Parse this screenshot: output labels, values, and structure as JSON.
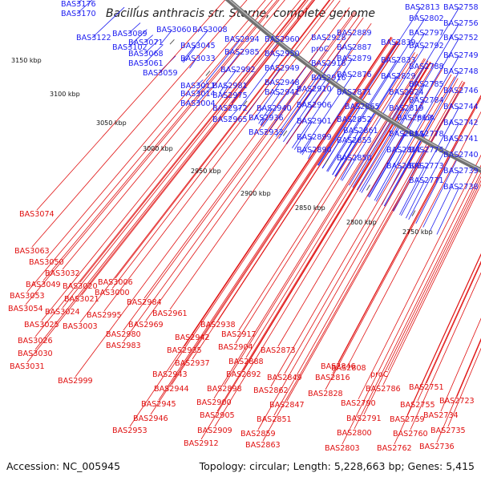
{
  "title": "Bacillus anthracis str. Sterne, complete genome",
  "footer": {
    "accession": "Accession: NC_005945",
    "summary": "Topology: circular; Length: 5,228,663 bp; Genes: 5,415"
  },
  "colors": {
    "forward_label": "#1d1df0",
    "reverse_label": "#e01010",
    "forward_cds": "#1a1ae6",
    "reverse_cds": "#ee1010",
    "backbone": "#707070"
  },
  "ticks": [
    "3150 kbp",
    "3100 kbp",
    "3050 kbp",
    "3000 kbp",
    "2950 kbp",
    "2900 kbp",
    "2850 kbp",
    "2800 kbp",
    "2750 kbp"
  ],
  "labels_top": [
    "BAS3176",
    "BAS3170",
    "BAS3122",
    "BAS3089",
    "BAS3060",
    "BAS3008",
    "BAS3102",
    "BAS3071",
    "BAS3068",
    "BAS3045",
    "BAS2994",
    "BAS2960",
    "BAS2928",
    "BAS2889",
    "BAS2813",
    "BAS2758",
    "BAS2802",
    "BAS2887",
    "BAS2839",
    "BAS2797",
    "BAS2756",
    "BAS2985",
    "BAS2950",
    "proC",
    "BAS2879",
    "BAS2792",
    "BAS2752",
    "BAS3061",
    "BAS3033",
    "BAS2949",
    "BAS2918",
    "BAS2833",
    "BAS2749",
    "BAS3059",
    "BAS2788",
    "BAS2982",
    "BAS2876",
    "BAS2829",
    "BAS2748",
    "BAS3011",
    "BAS2948",
    "BAS2916",
    "BAS2785",
    "BAS3014",
    "BAS2981",
    "BAS2941",
    "BAS2910",
    "BAS2871",
    "BAS2824",
    "BAS2746",
    "BAS3004",
    "BAS2975",
    "BAS2784",
    "BAS2906",
    "BAS2819",
    "BAS2744",
    "BAS2940",
    "BAS2865",
    "BAS2972",
    "BAS2936",
    "BAS2812",
    "proA",
    "BAS2742",
    "BAS2965",
    "BAS2901",
    "BAS2852",
    "BAS2861",
    "BAS2814",
    "BAS2778",
    "BAS2741",
    "BAS2933",
    "BAS2899",
    "BAS2853",
    "BAS2811",
    "BAS2775",
    "BAS2740",
    "BAS2890",
    "BAS2850",
    "BAS2809",
    "BAS2773",
    "BAS2739",
    "BAS2771",
    "BAS2738"
  ],
  "labels_bottom": [
    "BAS3074",
    "BAS3063",
    "BAS3050",
    "BAS3032",
    "BAS3049",
    "BAS3020",
    "BAS3006",
    "BAS3053",
    "BAS3000",
    "BAS3021",
    "BAS3054",
    "BAS3024",
    "BAS2984",
    "BAS2995",
    "BAS2961",
    "BAS3003",
    "BAS3025",
    "BAS2969",
    "BAS2938",
    "BAS2980",
    "BAS2917",
    "BAS3026",
    "BAS2942",
    "BAS2983",
    "BAS2935",
    "BAS2904",
    "BAS2873",
    "BAS3030",
    "BAS2999",
    "BAS2937",
    "BAS2888",
    "BAS2846",
    "BAS3031",
    "BAS2808",
    "BAS2892",
    "BAS2849",
    "BAS2816",
    "proC",
    "BAS2943",
    "BAS2751",
    "BAS2898",
    "BAS2862",
    "BAS2786",
    "BAS2944",
    "BAS2847",
    "BAS2828",
    "BAS2900",
    "BAS2790",
    "BAS2755",
    "BAS2723",
    "BAS2945",
    "BAS2905",
    "BAS2851",
    "BAS2791",
    "BAS2946",
    "BAS2759",
    "BAS2734",
    "BAS2953",
    "BAS2909",
    "BAS2800",
    "BAS2859",
    "BAS2760",
    "BAS2735",
    "BAS2912",
    "BAS2863",
    "BAS2803",
    "BAS2762",
    "BAS2736"
  ]
}
